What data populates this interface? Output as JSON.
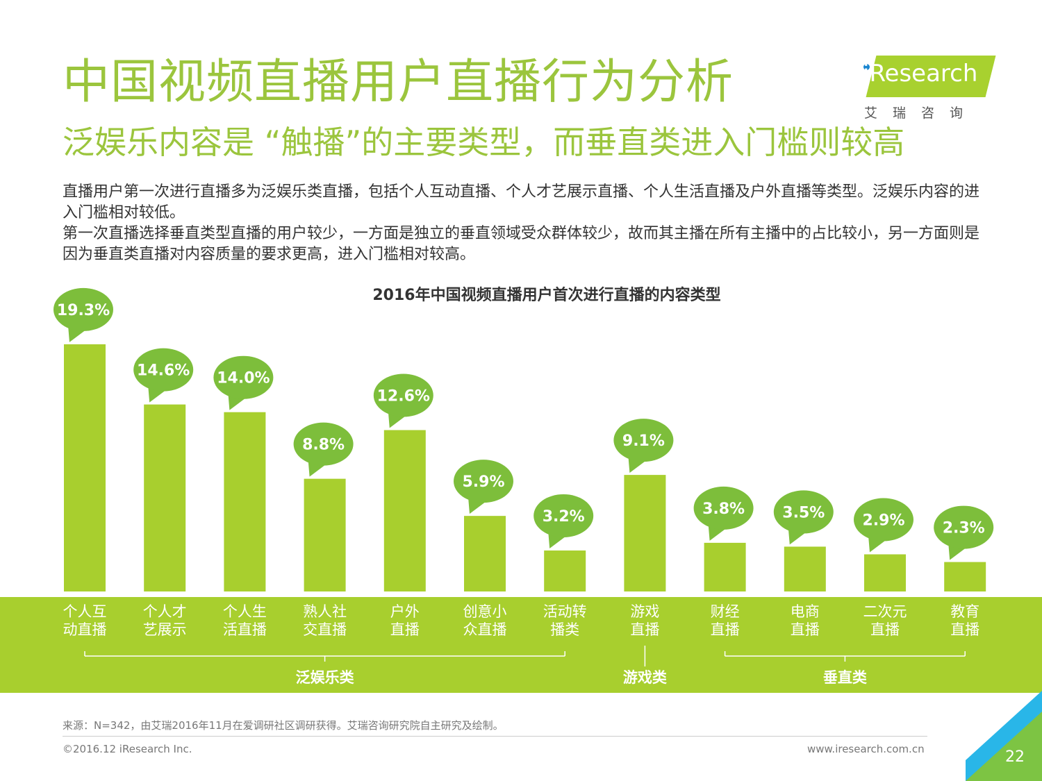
{
  "header": {
    "title": "中国视频直播用户直播行为分析",
    "subtitle": "泛娱乐内容是 “触播”的主要类型，而垂直类进入门槛则较高"
  },
  "logo": {
    "brand": "Research",
    "cn": "艾瑞咨询"
  },
  "description": [
    "直播用户第一次进行直播多为泛娱乐类直播，包括个人互动直播、个人才艺展示直播、个人生活直播及户外直播等类型。泛娱乐内容的进入门槛相对较低。",
    "第一次直播选择垂直类型直播的用户较少，一方面是独立的垂直领域受众群体较少，故而其主播在所有主播中的占比较小，另一方面则是因为垂直类直播对内容质量的要求更高，进入门槛相对较高。"
  ],
  "chart_data": {
    "type": "bar",
    "title": "2016年中国视频直播用户首次进行直播的内容类型",
    "categories": [
      [
        "个人互",
        "动直播"
      ],
      [
        "个人才",
        "艺展示"
      ],
      [
        "个人生",
        "活直播"
      ],
      [
        "熟人社",
        "交直播"
      ],
      [
        "户外",
        "直播"
      ],
      [
        "创意小",
        "众直播"
      ],
      [
        "活动转",
        "播类"
      ],
      [
        "游戏",
        "直播"
      ],
      [
        "财经",
        "直播"
      ],
      [
        "电商",
        "直播"
      ],
      [
        "二次元",
        "直播"
      ],
      [
        "教育",
        "直播"
      ]
    ],
    "values": [
      19.3,
      14.6,
      14.0,
      8.8,
      12.6,
      5.9,
      3.2,
      9.1,
      3.8,
      3.5,
      2.9,
      2.3
    ],
    "value_labels": [
      "19.3%",
      "14.6%",
      "14.0%",
      "8.8%",
      "12.6%",
      "5.9%",
      "3.2%",
      "9.1%",
      "3.8%",
      "3.5%",
      "2.9%",
      "2.3%"
    ],
    "groups": [
      {
        "label": "泛娱乐类",
        "from": 0,
        "to": 6
      },
      {
        "label": "游戏类",
        "from": 7,
        "to": 7
      },
      {
        "label": "垂直类",
        "from": 8,
        "to": 11
      }
    ],
    "colors": {
      "bar": "#A8CF2E",
      "bubble": "#7DBE3B",
      "band": "#A8CF2E"
    }
  },
  "footer": {
    "source": "来源：N=342，由艾瑞2016年11月在爱调研社区调研获得。艾瑞咨询研究院自主研究及绘制。",
    "copyright": "©2016.12 iResearch Inc.",
    "url": "www.iresearch.com.cn",
    "page": "22"
  }
}
